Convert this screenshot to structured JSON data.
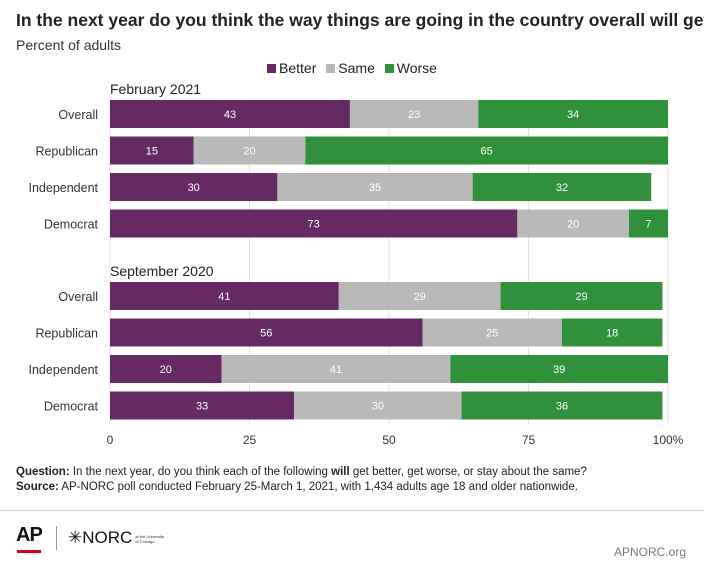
{
  "title": "In the next year do you think the way things are going in the country overall will get:",
  "subtitle": "Percent of adults",
  "legend": [
    {
      "label": "Better",
      "color": "#652a64"
    },
    {
      "label": "Same",
      "color": "#b9b9b9"
    },
    {
      "label": "Worse",
      "color": "#30913a"
    }
  ],
  "chart_data": {
    "type": "bar",
    "orientation": "horizontal",
    "stacked": true,
    "xlim": [
      0,
      100
    ],
    "x_ticks": [
      "0",
      "25",
      "50",
      "75",
      "100%"
    ],
    "series_colors": {
      "Better": "#652a64",
      "Same": "#b9b9b9",
      "Worse": "#30913a"
    },
    "groups": [
      {
        "label": "February 2021",
        "rows": [
          {
            "label": "Overall",
            "Better": 43,
            "Same": 23,
            "Worse": 34
          },
          {
            "label": "Republican",
            "Better": 15,
            "Same": 20,
            "Worse": 65
          },
          {
            "label": "Independent",
            "Better": 30,
            "Same": 35,
            "Worse": 32
          },
          {
            "label": "Democrat",
            "Better": 73,
            "Same": 20,
            "Worse": 7
          }
        ]
      },
      {
        "label": "September 2020",
        "rows": [
          {
            "label": "Overall",
            "Better": 41,
            "Same": 29,
            "Worse": 29
          },
          {
            "label": "Republican",
            "Better": 56,
            "Same": 25,
            "Worse": 18
          },
          {
            "label": "Independent",
            "Better": 20,
            "Same": 41,
            "Worse": 39
          },
          {
            "label": "Democrat",
            "Better": 33,
            "Same": 30,
            "Worse": 36
          }
        ]
      }
    ]
  },
  "footnote": {
    "question_label": "Question:",
    "question_pre": " In the next year, do you think each of the following ",
    "question_bold": "will",
    "question_post": " get better, get worse, or stay about the same?",
    "source_label": "Source:",
    "source_text": " AP-NORC poll conducted February 25-March 1, 2021, with 1,434 adults age 18 and older nationwide."
  },
  "logos": {
    "ap": "AP",
    "norc": "NORC",
    "norc_sub": "at the University of Chicago"
  },
  "site": "APNORC.org"
}
